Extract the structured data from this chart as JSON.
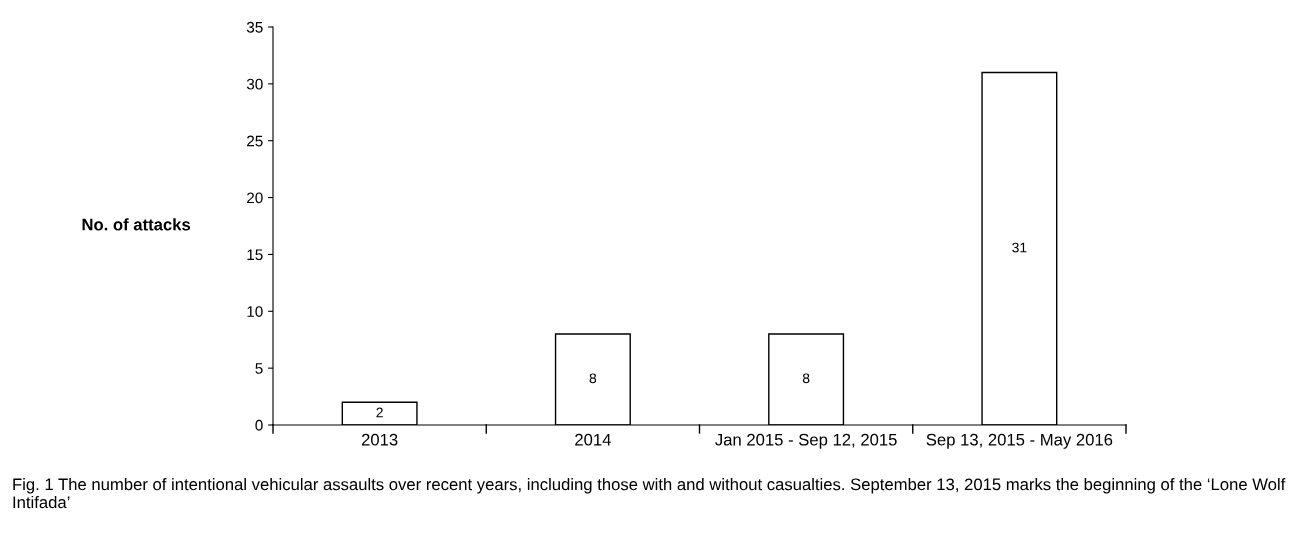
{
  "chart_data": {
    "type": "bar",
    "categories": [
      "2013",
      "2014",
      "Jan 2015 - Sep 12, 2015",
      "Sep 13, 2015 - May 2016"
    ],
    "values": [
      2,
      8,
      8,
      31
    ],
    "color": "#ffffff",
    "ylabel": "No. of attacks",
    "ylim": [
      0,
      35
    ],
    "yticks": [
      0,
      5,
      10,
      15,
      20,
      25,
      30,
      35
    ],
    "data_labels": true,
    "grid": false,
    "legend": false,
    "annotations": [
      "Fig. 1 The number of intentional vehicular assaults over recent years, including those with and without casualties. September 13, 2015 marks the beginning of the ‘Lone Wolf Intifada’"
    ]
  }
}
